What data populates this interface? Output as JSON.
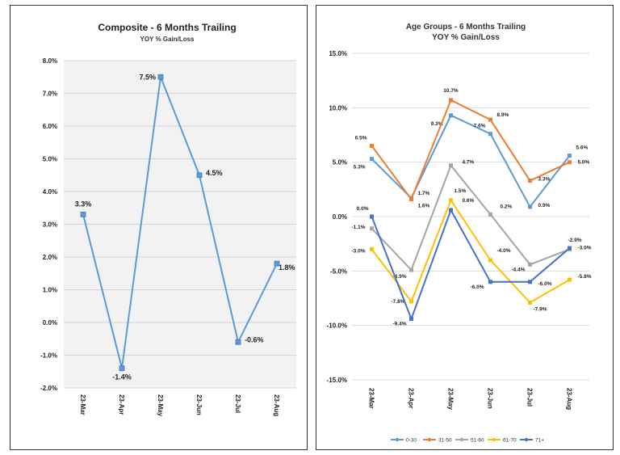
{
  "chart_data": [
    {
      "type": "line",
      "title": "Composite - 6 Months Trailing",
      "subtitle": "YOY % Gain/Loss",
      "categories": [
        "23-Mar",
        "23-Apr",
        "23-May",
        "23-Jun",
        "23-Jul",
        "23-Aug"
      ],
      "series": [
        {
          "values": [
            3.3,
            -1.4,
            7.5,
            4.5,
            -0.6,
            1.8
          ],
          "labels": [
            "3.3%",
            "-1.4%",
            "7.5%",
            "4.5%",
            "-0.6%",
            "1.8%"
          ],
          "color": "#5b9bd5"
        }
      ],
      "y_ticks": [
        "-2.0%",
        "-1.0%",
        "0.0%",
        "1.0%",
        "2.0%",
        "3.0%",
        "4.0%",
        "5.0%",
        "6.0%",
        "7.0%",
        "8.0%"
      ],
      "ylim": [
        -2,
        8
      ],
      "plot_background": "#f2f2f2",
      "grid": true
    },
    {
      "type": "line",
      "title": "Age Groups - 6 Months Trailing",
      "subtitle": "YOY % Gain/Loss",
      "categories": [
        "23-Mar",
        "23-Apr",
        "23-May",
        "23-Jun",
        "23-Jul",
        "23-Aug"
      ],
      "series": [
        {
          "name": "0-30",
          "color": "#5b9bd5",
          "values": [
            5.3,
            1.7,
            9.3,
            7.6,
            0.9,
            5.6
          ],
          "labels": [
            "5.3%",
            "1.7%",
            "9.3%",
            "7.6%",
            "0.9%",
            "5.6%"
          ]
        },
        {
          "name": "31-50",
          "color": "#ed7d31",
          "values": [
            6.5,
            1.6,
            10.7,
            8.9,
            3.3,
            5.0
          ],
          "labels": [
            "6.5%",
            "1.6%",
            "10.7%",
            "8.9%",
            "3.3%",
            "5.0%"
          ]
        },
        {
          "name": "51-60",
          "color": "#a5a5a5",
          "values": [
            -1.1,
            -4.9,
            4.7,
            0.2,
            -4.4,
            -3.0
          ],
          "labels": [
            "-1.1%",
            "-4.9%",
            "4.7%",
            "0.2%",
            "-4.4%",
            "-3.0%"
          ]
        },
        {
          "name": "61-70",
          "color": "#ffc000",
          "values": [
            -3.0,
            -7.8,
            1.5,
            -4.0,
            -7.9,
            -5.8
          ],
          "labels": [
            "-3.0%",
            "-7.8%",
            "1.5%",
            "-4.0%",
            "-7.9%",
            "-5.8%"
          ]
        },
        {
          "name": "71+",
          "color": "#4472c4",
          "values": [
            0.0,
            -9.4,
            0.6,
            -6.0,
            -6.0,
            -2.9
          ],
          "labels": [
            "0.0%",
            "-9.4%",
            "0.6%",
            "-6.0%",
            "-6.0%",
            "-2.9%"
          ]
        }
      ],
      "y_ticks": [
        "-15.0%",
        "-10.0%",
        "-5.0%",
        "0.0%",
        "5.0%",
        "10.0%",
        "15.0%"
      ],
      "ylim": [
        -15,
        15
      ],
      "legend_position": "bottom",
      "grid": true
    }
  ]
}
